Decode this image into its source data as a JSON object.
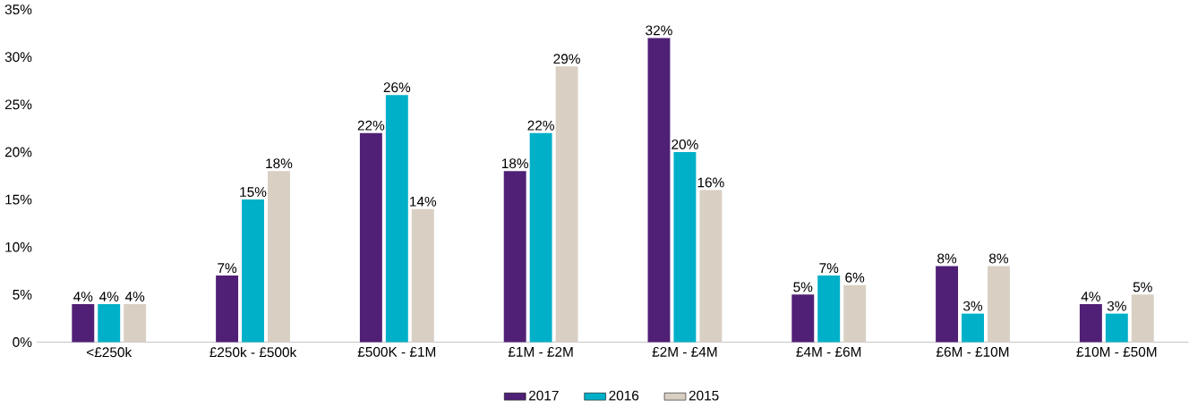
{
  "chart_data": {
    "type": "bar",
    "categories": [
      "<£250k",
      "£250k - £500k",
      "£500K - £1M",
      "£1M - £2M",
      "£2M - £4M",
      "£4M - £6M",
      "£6M - £10M",
      "£10M - £50M"
    ],
    "series": [
      {
        "name": "2017",
        "color": "#4f2075",
        "values": [
          4,
          7,
          22,
          18,
          32,
          5,
          8,
          4
        ],
        "value_labels": [
          "4%",
          "7%",
          "22%",
          "18%",
          "32%",
          "5%",
          "8%",
          "4%"
        ]
      },
      {
        "name": "2016",
        "color": "#00b0c8",
        "values": [
          4,
          15,
          26,
          22,
          20,
          7,
          3,
          3
        ],
        "value_labels": [
          "4%",
          "15%",
          "26%",
          "22%",
          "20%",
          "7%",
          "3%",
          "3%"
        ]
      },
      {
        "name": "2015",
        "color": "#d9cfc3",
        "values": [
          4,
          18,
          14,
          29,
          16,
          6,
          8,
          5
        ],
        "value_labels": [
          "4%",
          "18%",
          "14%",
          "29%",
          "16%",
          "6%",
          "8%",
          "5%"
        ]
      }
    ],
    "ylim": [
      0,
      35
    ],
    "yticks": [
      {
        "value": 0,
        "label": "0%"
      },
      {
        "value": 5,
        "label": "5%"
      },
      {
        "value": 10,
        "label": "10%"
      },
      {
        "value": 15,
        "label": "15%"
      },
      {
        "value": 20,
        "label": "20%"
      },
      {
        "value": 25,
        "label": "25%"
      },
      {
        "value": 30,
        "label": "30%"
      },
      {
        "value": 35,
        "label": "35%"
      }
    ],
    "grid": false,
    "legend": "bottom"
  }
}
